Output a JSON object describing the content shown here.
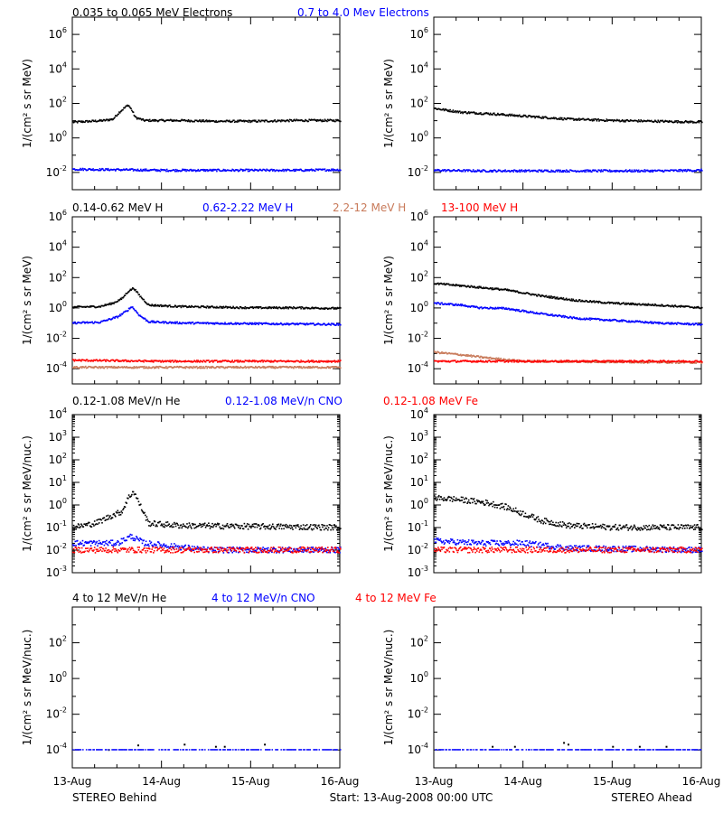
{
  "title": "",
  "footer": {
    "left": "STEREO Behind",
    "center": "Start: 13-Aug-2008 00:00 UTC",
    "right": "STEREO Ahead"
  },
  "x_axis": {
    "tick_labels": [
      "13-Aug",
      "14-Aug",
      "15-Aug",
      "16-Aug"
    ],
    "range": [
      "2008-08-13",
      "2008-08-16"
    ],
    "minor_per_major": 4
  },
  "colors": {
    "black": "#000000",
    "blue": "#0000ff",
    "tan": "#c87a5a",
    "red": "#ff0000"
  },
  "rows": [
    {
      "headers": [
        {
          "text": "0.035 to 0.065 MeV Electrons",
          "color": "#000000"
        },
        {
          "text": "0.7 to 4.0 Mev Electrons",
          "color": "#0000ff"
        }
      ],
      "ylabel": "1/(cm² s sr MeV)",
      "yrange_log10": [
        -3,
        7
      ],
      "ytick_exponents": [
        -2,
        0,
        2,
        4,
        6
      ],
      "minor_step": 1
    },
    {
      "headers": [
        {
          "text": "0.14-0.62 MeV H",
          "color": "#000000"
        },
        {
          "text": "0.62-2.22 MeV H",
          "color": "#0000ff"
        },
        {
          "text": "2.2-12 MeV H",
          "color": "#c87a5a"
        },
        {
          "text": "13-100 MeV H",
          "color": "#ff0000"
        }
      ],
      "ylabel": "1/(cm² s sr MeV)",
      "yrange_log10": [
        -5,
        6
      ],
      "ytick_exponents": [
        -4,
        -2,
        0,
        2,
        4,
        6
      ],
      "minor_step": 1
    },
    {
      "headers": [
        {
          "text": "0.12-1.08 MeV/n He",
          "color": "#000000"
        },
        {
          "text": "0.12-1.08 MeV/n CNO",
          "color": "#0000ff"
        },
        {
          "text": "0.12-1.08 MeV Fe",
          "color": "#ff0000"
        }
      ],
      "ylabel": "1/(cm² s sr MeV/nuc.)",
      "yrange_log10": [
        -3,
        4
      ],
      "ytick_exponents": [
        -3,
        -2,
        -1,
        0,
        1,
        2,
        3,
        4
      ],
      "minor_step": 0
    },
    {
      "headers": [
        {
          "text": "4 to 12 MeV/n He",
          "color": "#000000"
        },
        {
          "text": "4 to 12 MeV/n CNO",
          "color": "#0000ff"
        },
        {
          "text": "4 to 12 MeV Fe",
          "color": "#ff0000"
        }
      ],
      "ylabel": "1/(cm² s sr MeV/nuc.)",
      "yrange_log10": [
        -5,
        4
      ],
      "ytick_exponents": [
        -4,
        -2,
        0,
        2
      ],
      "minor_step": 1
    }
  ],
  "chart_data": [
    {
      "type": "scatter",
      "spacecraft": "STEREO Behind",
      "row": 0,
      "col": 0,
      "ylabel": "1/(cm² s sr MeV)",
      "y_scale": "log",
      "ylim": [
        0.001,
        10000000
      ],
      "x_unit": "day offset from start",
      "xlim": [
        0,
        3
      ],
      "series": [
        {
          "name": "0.035 to 0.065 MeV Electrons",
          "color": "#000000",
          "x": [
            0,
            0.2,
            0.35,
            0.45,
            0.52,
            0.57,
            0.62,
            0.66,
            0.7,
            0.8,
            1.2,
            1.6,
            2.0,
            2.5,
            3.0
          ],
          "y": [
            8,
            9,
            10,
            12,
            30,
            50,
            80,
            40,
            15,
            10,
            10,
            9,
            9,
            10,
            10
          ]
        },
        {
          "name": "0.7 to 4.0 Mev Electrons",
          "color": "#0000ff",
          "x": [
            0,
            0.5,
            1.0,
            1.5,
            2.0,
            2.5,
            3.0
          ],
          "y": [
            0.015,
            0.014,
            0.013,
            0.013,
            0.013,
            0.013,
            0.014
          ]
        }
      ]
    },
    {
      "type": "scatter",
      "spacecraft": "STEREO Ahead",
      "row": 0,
      "col": 1,
      "ylabel": "1/(cm² s sr MeV)",
      "y_scale": "log",
      "ylim": [
        0.001,
        10000000
      ],
      "x_unit": "day offset from start",
      "xlim": [
        0,
        3
      ],
      "series": [
        {
          "name": "0.035 to 0.065 MeV Electrons",
          "color": "#000000",
          "x": [
            0,
            0.3,
            0.6,
            1.0,
            1.5,
            2.0,
            2.5,
            3.0
          ],
          "y": [
            50,
            30,
            25,
            18,
            12,
            10,
            9,
            8
          ]
        },
        {
          "name": "0.7 to 4.0 Mev Electrons",
          "color": "#0000ff",
          "x": [
            0,
            0.5,
            1.0,
            1.5,
            2.0,
            2.5,
            3.0
          ],
          "y": [
            0.013,
            0.012,
            0.012,
            0.012,
            0.012,
            0.012,
            0.013
          ]
        }
      ]
    },
    {
      "type": "scatter",
      "spacecraft": "STEREO Behind",
      "row": 1,
      "col": 0,
      "ylabel": "1/(cm² s sr MeV)",
      "y_scale": "log",
      "ylim": [
        1e-05,
        1000000
      ],
      "x_unit": "day offset from start",
      "xlim": [
        0,
        3
      ],
      "series": [
        {
          "name": "0.14-0.62 MeV H",
          "color": "#000000",
          "x": [
            0,
            0.3,
            0.45,
            0.55,
            0.62,
            0.68,
            0.75,
            0.85,
            1.2,
            1.6,
            2.0,
            2.5,
            3.0
          ],
          "y": [
            1.1,
            1.2,
            2,
            4,
            12,
            20,
            6,
            1.5,
            1.2,
            1.1,
            1.0,
            1.0,
            0.9
          ]
        },
        {
          "name": "0.62-2.22 MeV H",
          "color": "#0000ff",
          "x": [
            0,
            0.3,
            0.5,
            0.6,
            0.66,
            0.75,
            0.85,
            1.2,
            2.0,
            3.0
          ],
          "y": [
            0.1,
            0.11,
            0.25,
            0.6,
            1.2,
            0.3,
            0.12,
            0.1,
            0.09,
            0.08
          ]
        },
        {
          "name": "2.2-12 MeV H",
          "color": "#c87a5a",
          "x": [
            0,
            1.0,
            2.0,
            3.0
          ],
          "y": [
            0.00012,
            0.00012,
            0.00012,
            0.00012
          ]
        },
        {
          "name": "13-100 MeV H",
          "color": "#ff0000",
          "x": [
            0,
            1.0,
            2.0,
            3.0
          ],
          "y": [
            0.00035,
            0.0003,
            0.0003,
            0.0003
          ]
        }
      ]
    },
    {
      "type": "scatter",
      "spacecraft": "STEREO Ahead",
      "row": 1,
      "col": 1,
      "ylabel": "1/(cm² s sr MeV)",
      "y_scale": "log",
      "ylim": [
        1e-05,
        1000000
      ],
      "x_unit": "day offset from start",
      "xlim": [
        0,
        3
      ],
      "series": [
        {
          "name": "0.14-0.62 MeV H",
          "color": "#000000",
          "x": [
            0,
            0.4,
            0.8,
            1.2,
            1.6,
            2.0,
            2.5,
            3.0
          ],
          "y": [
            40,
            25,
            15,
            6,
            3,
            2,
            1.5,
            1.0
          ]
        },
        {
          "name": "0.62-2.22 MeV H",
          "color": "#0000ff",
          "x": [
            0,
            0.3,
            0.5,
            0.8,
            1.2,
            1.6,
            2.0,
            2.5,
            3.0
          ],
          "y": [
            2,
            1.5,
            1.0,
            0.9,
            0.4,
            0.2,
            0.15,
            0.1,
            0.08
          ]
        },
        {
          "name": "2.2-12 MeV H",
          "color": "#c87a5a",
          "x": [
            0,
            0.3,
            0.6,
            1.0,
            3.0
          ],
          "y": [
            0.0012,
            0.0008,
            0.0005,
            0.0003,
            0.00025
          ]
        },
        {
          "name": "13-100 MeV H",
          "color": "#ff0000",
          "x": [
            0,
            1.0,
            2.0,
            3.0
          ],
          "y": [
            0.0003,
            0.0003,
            0.0003,
            0.0003
          ]
        }
      ]
    },
    {
      "type": "scatter",
      "spacecraft": "STEREO Behind",
      "row": 2,
      "col": 0,
      "ylabel": "1/(cm² s sr MeV/nuc.)",
      "y_scale": "log",
      "ylim": [
        0.001,
        10000
      ],
      "x_unit": "day offset from start",
      "xlim": [
        0,
        3
      ],
      "series": [
        {
          "name": "0.12-1.08 MeV/n He",
          "color": "#000000",
          "x": [
            0,
            0.25,
            0.45,
            0.55,
            0.62,
            0.68,
            0.75,
            0.85,
            1.2,
            2.0,
            3.0
          ],
          "y": [
            0.1,
            0.15,
            0.35,
            0.5,
            2,
            4,
            1,
            0.15,
            0.12,
            0.11,
            0.1
          ]
        },
        {
          "name": "0.12-1.08 MeV/n CNO",
          "color": "#0000ff",
          "x": [
            0,
            0.5,
            0.65,
            0.8,
            1.5,
            3.0
          ],
          "y": [
            0.02,
            0.02,
            0.04,
            0.02,
            0.01,
            0.01
          ]
        },
        {
          "name": "0.12-1.08 MeV Fe",
          "color": "#ff0000",
          "x": [
            0,
            1.0,
            2.0,
            3.0
          ],
          "y": [
            0.01,
            0.01,
            0.01,
            0.01
          ]
        }
      ]
    },
    {
      "type": "scatter",
      "spacecraft": "STEREO Ahead",
      "row": 2,
      "col": 1,
      "ylabel": "1/(cm² s sr MeV/nuc.)",
      "y_scale": "log",
      "ylim": [
        0.001,
        10000
      ],
      "x_unit": "day offset from start",
      "xlim": [
        0,
        3
      ],
      "series": [
        {
          "name": "0.12-1.08 MeV/n He",
          "color": "#000000",
          "x": [
            0,
            0.2,
            0.4,
            0.6,
            0.8,
            1.0,
            1.2,
            1.5,
            2.0,
            2.5,
            3.0
          ],
          "y": [
            2,
            1.8,
            1.5,
            1.2,
            0.8,
            0.4,
            0.2,
            0.12,
            0.1,
            0.1,
            0.1
          ]
        },
        {
          "name": "0.12-1.08 MeV/n CNO",
          "color": "#0000ff",
          "x": [
            0,
            0.5,
            1.0,
            1.5,
            3.0
          ],
          "y": [
            0.025,
            0.02,
            0.02,
            0.012,
            0.01
          ]
        },
        {
          "name": "0.12-1.08 MeV Fe",
          "color": "#ff0000",
          "x": [
            0,
            1.0,
            2.0,
            3.0
          ],
          "y": [
            0.01,
            0.01,
            0.01,
            0.01
          ]
        }
      ]
    },
    {
      "type": "scatter",
      "spacecraft": "STEREO Behind",
      "row": 3,
      "col": 0,
      "ylabel": "1/(cm² s sr MeV/nuc.)",
      "y_scale": "log",
      "ylim": [
        1e-05,
        10000
      ],
      "x_unit": "day offset from start",
      "xlim": [
        0,
        3
      ],
      "series": [
        {
          "name": "4 to 12 MeV/n He",
          "color": "#000000",
          "x": [
            0.4,
            0.73,
            1.25,
            1.6,
            1.7,
            2.15
          ],
          "y": [
            0.0001,
            0.00018,
            0.0002,
            0.00015,
            0.00015,
            0.0002
          ]
        },
        {
          "name": "4 to 12 MeV/n CNO",
          "color": "#0000ff",
          "x": [
            0,
            1.0,
            2.0,
            3.0
          ],
          "y": [
            0.0001,
            0.0001,
            0.0001,
            0.0001
          ]
        },
        {
          "name": "4 to 12 MeV Fe",
          "color": "#ff0000",
          "x": [],
          "y": []
        }
      ]
    },
    {
      "type": "scatter",
      "spacecraft": "STEREO Ahead",
      "row": 3,
      "col": 1,
      "ylabel": "1/(cm² s sr MeV/nuc.)",
      "y_scale": "log",
      "ylim": [
        1e-05,
        10000
      ],
      "x_unit": "day offset from start",
      "xlim": [
        0,
        3
      ],
      "series": [
        {
          "name": "4 to 12 MeV/n He",
          "color": "#000000",
          "x": [
            0.65,
            0.9,
            1.45,
            1.5,
            2.0,
            2.3,
            2.6
          ],
          "y": [
            0.00015,
            0.00015,
            0.00025,
            0.0002,
            0.00015,
            0.00015,
            0.00015
          ]
        },
        {
          "name": "4 to 12 MeV/n CNO",
          "color": "#0000ff",
          "x": [
            0,
            1.0,
            2.0,
            3.0
          ],
          "y": [
            0.0001,
            0.0001,
            0.0001,
            0.0001
          ]
        },
        {
          "name": "4 to 12 MeV Fe",
          "color": "#ff0000",
          "x": [],
          "y": []
        }
      ]
    }
  ]
}
